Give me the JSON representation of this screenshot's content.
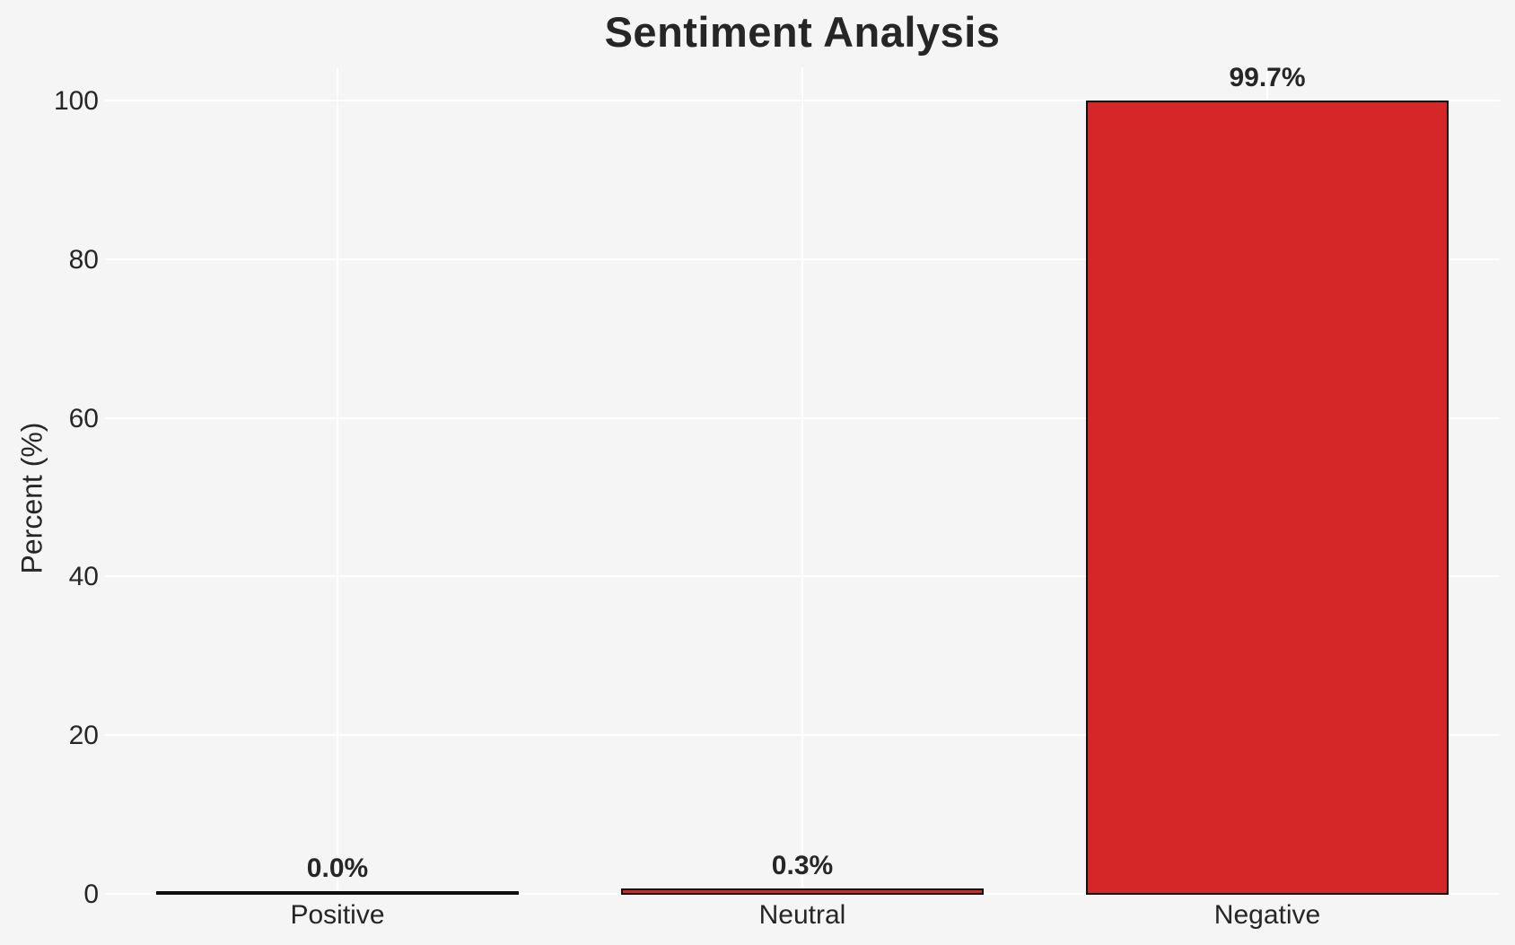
{
  "chart_data": {
    "type": "bar",
    "title": "Sentiment Analysis",
    "xlabel": "",
    "ylabel": "Percent (%)",
    "categories": [
      "Positive",
      "Neutral",
      "Negative"
    ],
    "values": [
      0.0,
      0.3,
      99.7
    ],
    "value_labels": [
      "0.0%",
      "0.3%",
      "99.7%"
    ],
    "yticks": [
      0,
      20,
      40,
      60,
      80,
      100
    ],
    "ylim": [
      0,
      104.3
    ],
    "grid": true,
    "legend": false,
    "colors": {
      "bar_fill": "#d62728",
      "bar_edge": "#0f0f0f",
      "background": "#f5f5f6",
      "gridline": "#ffffff",
      "text": "#262626"
    }
  }
}
